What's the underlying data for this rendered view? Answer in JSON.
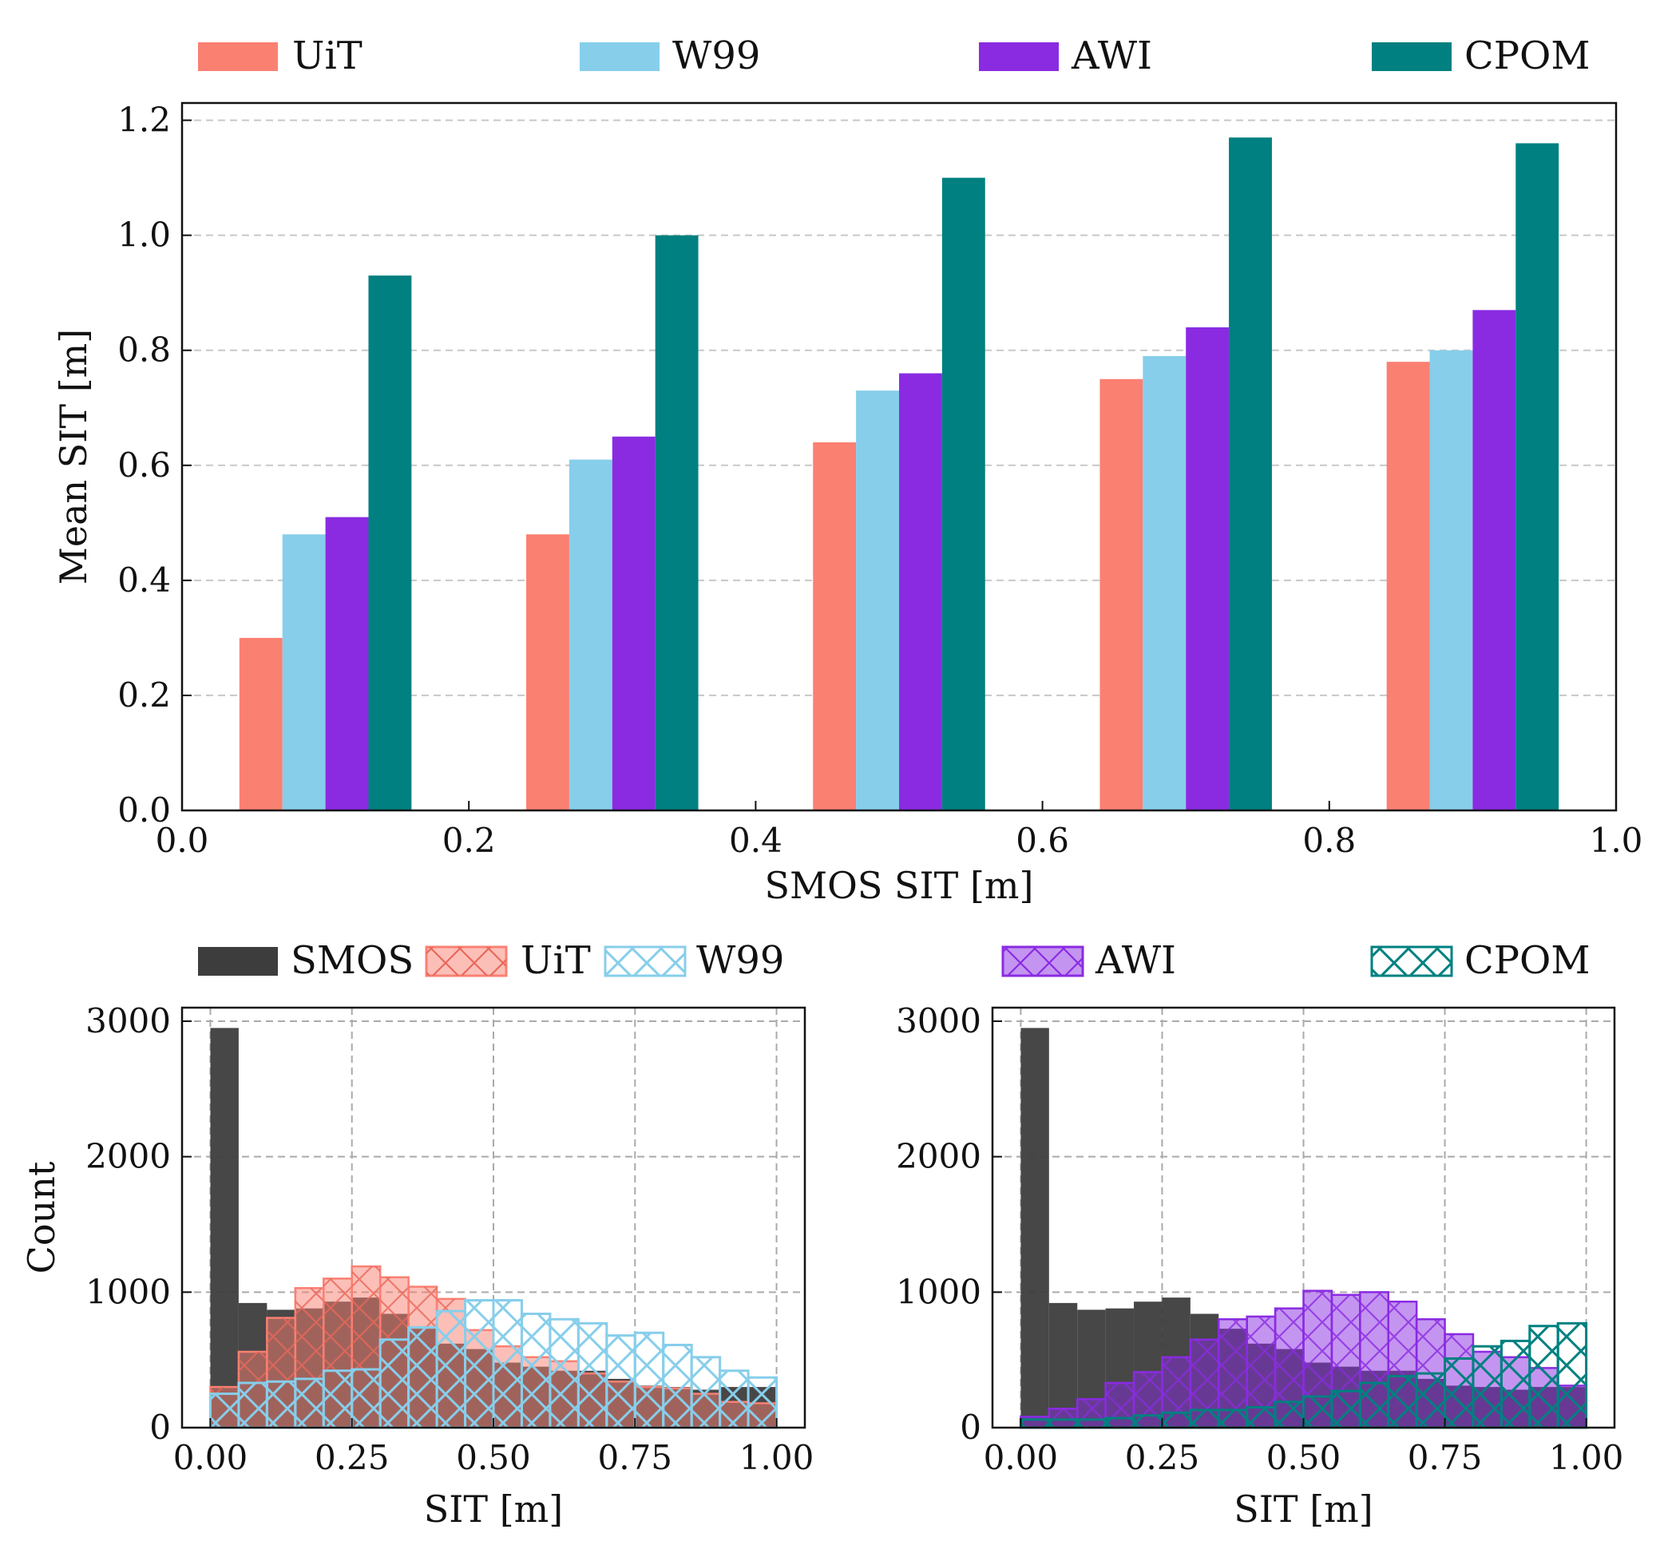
{
  "colors": {
    "UiT": "#fa8072",
    "W99": "#87ceeb",
    "AWI": "#8a2be2",
    "CPOM": "#008080",
    "SMOS": "#3d3d3d"
  },
  "chart_data": [
    {
      "type": "bar",
      "panel": "top",
      "xlabel": "SMOS SIT [m]",
      "ylabel": "Mean SIT [m]",
      "xlim": [
        0.0,
        1.0
      ],
      "ylim": [
        0.0,
        1.23
      ],
      "x_ticks": [
        "0.0",
        "0.2",
        "0.4",
        "0.6",
        "0.8",
        "1.0"
      ],
      "y_ticks": [
        "0.0",
        "0.2",
        "0.4",
        "0.6",
        "0.8",
        "1.0",
        "1.2"
      ],
      "grid": "y dashed",
      "legend_position": "above",
      "categories_x": [
        0.1,
        0.3,
        0.5,
        0.7,
        0.9
      ],
      "series": [
        {
          "name": "UiT",
          "values": [
            0.3,
            0.48,
            0.64,
            0.75,
            0.78
          ]
        },
        {
          "name": "W99",
          "values": [
            0.48,
            0.61,
            0.73,
            0.79,
            0.8
          ]
        },
        {
          "name": "AWI",
          "values": [
            0.51,
            0.65,
            0.76,
            0.84,
            0.87
          ]
        },
        {
          "name": "CPOM",
          "values": [
            0.93,
            1.0,
            1.1,
            1.17,
            1.16
          ]
        }
      ]
    },
    {
      "type": "histogram",
      "panel": "bottom-left",
      "xlabel": "SIT [m]",
      "ylabel": "Count",
      "xlim": [
        -0.05,
        1.05
      ],
      "ylim": [
        0,
        3100
      ],
      "x_ticks": [
        "0.00",
        "0.25",
        "0.50",
        "0.75",
        "1.00"
      ],
      "y_ticks": [
        "0",
        "1000",
        "2000",
        "3000"
      ],
      "grid": "both dashed",
      "legend_position": "above",
      "bin_width": 0.05,
      "bin_starts": [
        0.0,
        0.05,
        0.1,
        0.15,
        0.2,
        0.25,
        0.3,
        0.35,
        0.4,
        0.45,
        0.5,
        0.55,
        0.6,
        0.65,
        0.7,
        0.75,
        0.8,
        0.85,
        0.9,
        0.95
      ],
      "series": [
        {
          "name": "SMOS",
          "style": "solid",
          "values": [
            2950,
            920,
            870,
            880,
            930,
            960,
            840,
            730,
            620,
            580,
            480,
            450,
            420,
            420,
            360,
            310,
            300,
            280,
            300,
            300
          ]
        },
        {
          "name": "UiT",
          "style": "hatch-filled",
          "values": [
            300,
            560,
            810,
            1030,
            1100,
            1190,
            1110,
            1040,
            950,
            720,
            600,
            520,
            490,
            400,
            340,
            300,
            290,
            250,
            190,
            180
          ]
        },
        {
          "name": "W99",
          "style": "hatch-outline",
          "values": [
            250,
            330,
            340,
            360,
            420,
            430,
            650,
            740,
            860,
            940,
            940,
            840,
            800,
            770,
            680,
            700,
            610,
            520,
            420,
            370
          ]
        }
      ]
    },
    {
      "type": "histogram",
      "panel": "bottom-right",
      "xlabel": "SIT [m]",
      "ylabel": "",
      "xlim": [
        -0.05,
        1.05
      ],
      "ylim": [
        0,
        3100
      ],
      "x_ticks": [
        "0.00",
        "0.25",
        "0.50",
        "0.75",
        "1.00"
      ],
      "y_ticks": [
        "0",
        "1000",
        "2000",
        "3000"
      ],
      "grid": "both dashed",
      "legend_position": "above",
      "bin_width": 0.05,
      "bin_starts": [
        0.0,
        0.05,
        0.1,
        0.15,
        0.2,
        0.25,
        0.3,
        0.35,
        0.4,
        0.45,
        0.5,
        0.55,
        0.6,
        0.65,
        0.7,
        0.75,
        0.8,
        0.85,
        0.9,
        0.95
      ],
      "series": [
        {
          "name": "SMOS",
          "style": "solid",
          "values": [
            2950,
            920,
            870,
            880,
            930,
            960,
            840,
            730,
            620,
            580,
            480,
            450,
            420,
            420,
            360,
            310,
            300,
            280,
            300,
            300
          ]
        },
        {
          "name": "AWI",
          "style": "hatch-filled",
          "values": [
            80,
            140,
            210,
            330,
            410,
            520,
            650,
            800,
            820,
            880,
            1010,
            980,
            1000,
            930,
            800,
            690,
            560,
            520,
            440,
            310
          ]
        },
        {
          "name": "CPOM",
          "style": "hatch-outline",
          "values": [
            60,
            60,
            60,
            70,
            90,
            110,
            130,
            130,
            150,
            190,
            230,
            270,
            330,
            380,
            400,
            510,
            600,
            640,
            750,
            770
          ]
        }
      ]
    }
  ],
  "legends": {
    "top": [
      "UiT",
      "W99",
      "AWI",
      "CPOM"
    ],
    "bottom_left": [
      "SMOS",
      "UiT",
      "W99"
    ],
    "bottom_right": [
      "AWI",
      "CPOM"
    ]
  }
}
